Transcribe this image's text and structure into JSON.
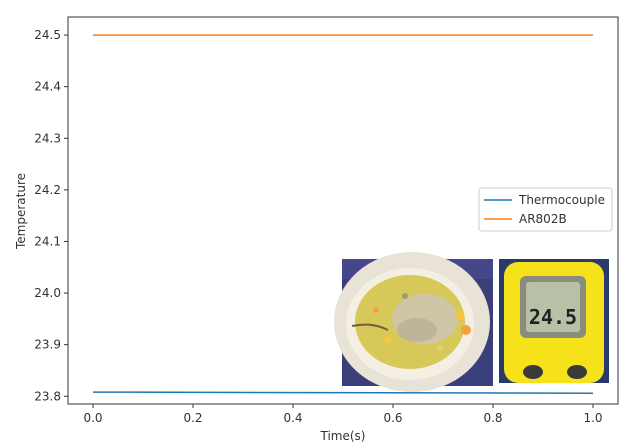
{
  "chart_data": {
    "type": "line",
    "xlabel": "Time(s)",
    "ylabel": "Temperature",
    "xlim": [
      -0.05,
      1.05
    ],
    "ylim": [
      23.785,
      24.535
    ],
    "xticks": [
      0.0,
      0.2,
      0.4,
      0.6,
      0.8,
      1.0
    ],
    "xtick_labels": [
      "0.0",
      "0.2",
      "0.4",
      "0.6",
      "0.8",
      "1.0"
    ],
    "yticks": [
      23.8,
      23.9,
      24.0,
      24.1,
      24.2,
      24.3,
      24.4,
      24.5
    ],
    "ytick_labels": [
      "23.8",
      "23.9",
      "24.0",
      "24.1",
      "24.2",
      "24.3",
      "24.4",
      "24.5"
    ],
    "grid": false,
    "legend_position": "center-right",
    "series": [
      {
        "name": "Thermocouple",
        "color": "#1f77b4",
        "x": [
          0.0,
          1.0
        ],
        "y": [
          23.808,
          23.806
        ]
      },
      {
        "name": "AR802B",
        "color": "#ff7f0e",
        "x": [
          0.0,
          1.0
        ],
        "y": [
          24.5,
          24.5
        ]
      }
    ],
    "inset_images": [
      {
        "name": "noodle-cup-photo",
        "colors": {
          "rim": "#e8e3d6",
          "noodles": "#d6c95a",
          "sauce": "#cfc6a8",
          "background": "#3a3f7a"
        }
      },
      {
        "name": "ir-thermometer-photo",
        "display_reading": "24.5",
        "colors": {
          "body": "#f5e21a",
          "screen": "#b9c0a8",
          "background": "#2a3a6a"
        }
      }
    ]
  }
}
